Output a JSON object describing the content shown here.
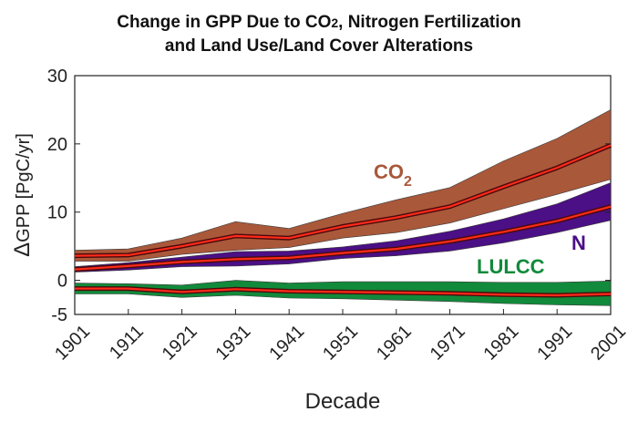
{
  "title_line1_pre": "Change in GPP Due to CO",
  "title_line1_sub": "2",
  "title_line1_post": ", Nitrogen Fertilization",
  "title_line2": "and Land Use/Land Cover Alterations",
  "chart_data": {
    "type": "area",
    "title": "Change in GPP Due to CO2, Nitrogen Fertilization and Land Use/Land Cover Alterations",
    "xlabel": "Decade",
    "ylabel_delta": "Δ",
    "ylabel": "GPP [PgC/yr]",
    "x": [
      "1901",
      "1911",
      "1921",
      "1931",
      "1941",
      "1951",
      "1961",
      "1971",
      "1981",
      "1991",
      "2001"
    ],
    "ylim": [
      -5,
      30
    ],
    "yticks": [
      -5,
      0,
      10,
      20,
      30
    ],
    "ytick_labels": [
      "-5",
      "0",
      "10",
      "20",
      "30"
    ],
    "grid": false,
    "series": [
      {
        "name": "CO2",
        "label_main": "CO",
        "label_sub": "2",
        "color": "#a9583a",
        "mean": [
          3.6,
          3.7,
          5.0,
          6.5,
          6.2,
          7.9,
          9.2,
          10.8,
          13.7,
          16.5,
          19.8
        ],
        "upper": [
          4.4,
          4.6,
          6.2,
          8.6,
          7.6,
          9.8,
          11.8,
          13.6,
          17.5,
          20.8,
          25.0
        ],
        "lower": [
          2.8,
          2.8,
          3.8,
          4.4,
          4.8,
          6.2,
          7.0,
          8.4,
          10.5,
          12.6,
          14.8
        ]
      },
      {
        "name": "N",
        "label_main": "N",
        "color": "#4b0f86",
        "mean": [
          1.6,
          2.1,
          2.7,
          3.1,
          3.3,
          4.0,
          4.6,
          5.7,
          7.1,
          8.7,
          10.8
        ],
        "upper": [
          2.0,
          2.6,
          3.4,
          4.2,
          4.3,
          4.9,
          5.8,
          7.2,
          9.0,
          11.2,
          14.3
        ],
        "lower": [
          1.2,
          1.5,
          2.0,
          2.1,
          2.4,
          3.2,
          3.6,
          4.3,
          5.5,
          7.0,
          8.8
        ]
      },
      {
        "name": "LULCC",
        "label_main": "LULCC",
        "color": "#118a3b",
        "mean": [
          -1.2,
          -1.2,
          -1.7,
          -1.3,
          -1.6,
          -1.7,
          -1.8,
          -1.9,
          -2.1,
          -2.2,
          -2.0
        ],
        "upper": [
          -0.4,
          -0.5,
          -0.7,
          0.0,
          -0.4,
          -0.2,
          -0.2,
          -0.2,
          -0.3,
          -0.3,
          -0.1
        ],
        "lower": [
          -2.0,
          -2.0,
          -2.5,
          -2.2,
          -2.6,
          -2.7,
          -2.9,
          -3.1,
          -3.4,
          -3.6,
          -3.7
        ]
      }
    ]
  }
}
